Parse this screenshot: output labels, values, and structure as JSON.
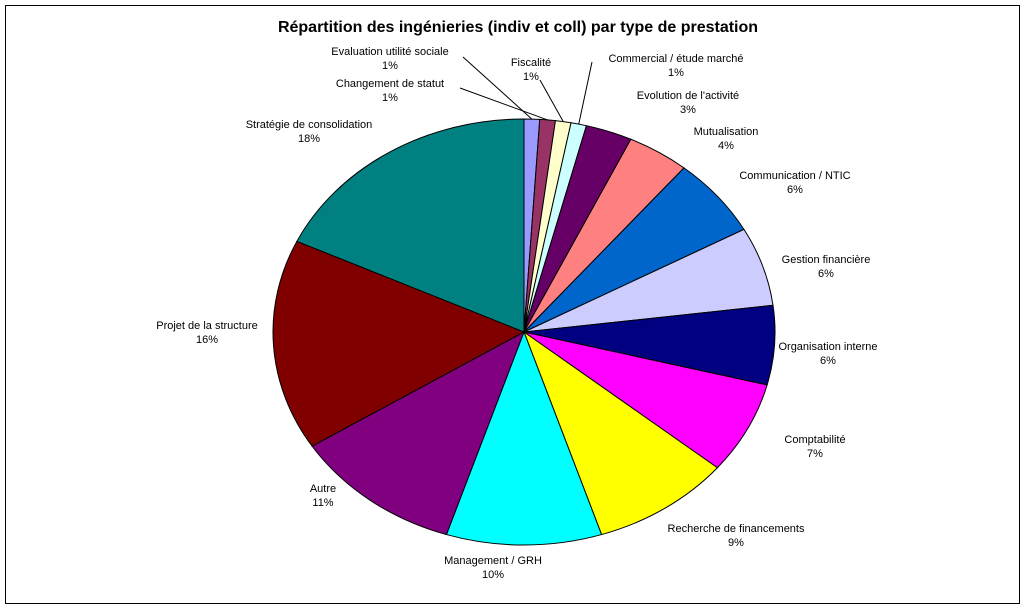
{
  "chart_data": {
    "type": "pie",
    "title": "Répartition des ingénieries (indiv et coll) par type de prestation",
    "categories": [
      "Evaluation utilité sociale",
      "Changement de statut",
      "Fiscalité",
      "Commercial / étude marché",
      "Evolution de l'activité",
      "Mutualisation",
      "Communication / NTIC",
      "Gestion financière",
      "Organisation interne",
      "Comptabilité",
      "Recherche de financements",
      "Management / GRH",
      "Autre",
      "Projet de la structure",
      "Stratégie de consolidation"
    ],
    "values": [
      1,
      1,
      1,
      1,
      3,
      4,
      6,
      6,
      6,
      7,
      9,
      10,
      11,
      16,
      18
    ],
    "value_labels": [
      "1%",
      "1%",
      "1%",
      "1%",
      "3%",
      "4%",
      "6%",
      "6%",
      "6%",
      "7%",
      "9%",
      "10%",
      "11%",
      "16%",
      "18%"
    ],
    "colors": [
      "#9999ff",
      "#993366",
      "#ffffcc",
      "#ccffff",
      "#660066",
      "#ff8080",
      "#0066cc",
      "#ccccff",
      "#000080",
      "#ff00ff",
      "#ffff00",
      "#00ffff",
      "#800080",
      "#800000",
      "#008080"
    ]
  }
}
